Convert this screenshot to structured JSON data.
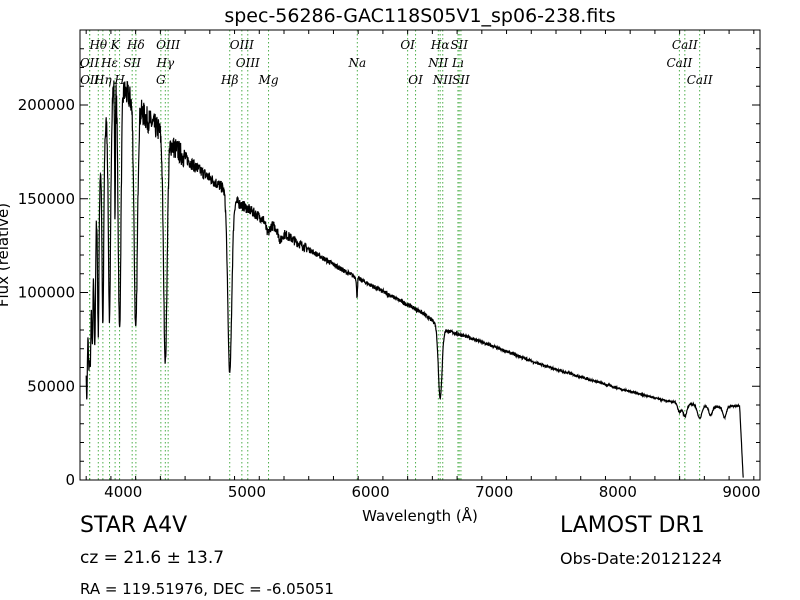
{
  "title": "spec-56286-GAC118S05V1_sp06-238.fits",
  "info": {
    "object_class": "STAR   A4V",
    "survey": "LAMOST DR1",
    "cz": "cz = 21.6  ± 13.7",
    "obs_date": "Obs-Date:20121224",
    "ra_dec": "RA = 119.51976, DEC = -6.05051"
  },
  "colors": {
    "spectrum": "#000000",
    "line_marker": "#4daf4a"
  },
  "chart_data": {
    "type": "line",
    "title": "spec-56286-GAC118S05V1_sp06-238.fits",
    "xlabel": "Wavelength (Å)",
    "ylabel": "Flux (relative)",
    "xlim": [
      3650,
      9150
    ],
    "ylim": [
      0,
      240000
    ],
    "xticks": [
      4000,
      5000,
      6000,
      7000,
      8000,
      9000
    ],
    "yticks": [
      0,
      50000,
      100000,
      150000,
      200000
    ],
    "grid": false,
    "continuum": [
      [
        3700,
        85000
      ],
      [
        3750,
        120000
      ],
      [
        3800,
        160000
      ],
      [
        3850,
        185000
      ],
      [
        3900,
        205000
      ],
      [
        3950,
        212000
      ],
      [
        4000,
        208000
      ],
      [
        4100,
        200000
      ],
      [
        4200,
        192000
      ],
      [
        4300,
        186000
      ],
      [
        4400,
        178000
      ],
      [
        4500,
        172000
      ],
      [
        4600,
        166000
      ],
      [
        4700,
        161000
      ],
      [
        4800,
        156000
      ],
      [
        4900,
        149000
      ],
      [
        5000,
        145000
      ],
      [
        5200,
        136000
      ],
      [
        5400,
        127000
      ],
      [
        5600,
        119000
      ],
      [
        5800,
        111000
      ],
      [
        6000,
        104000
      ],
      [
        6200,
        97000
      ],
      [
        6400,
        90000
      ],
      [
        6600,
        80000
      ],
      [
        6800,
        76000
      ],
      [
        7000,
        71000
      ],
      [
        7200,
        66000
      ],
      [
        7400,
        61000
      ],
      [
        7600,
        57000
      ],
      [
        7800,
        53000
      ],
      [
        8000,
        49000
      ],
      [
        8200,
        45500
      ],
      [
        8400,
        42000
      ],
      [
        8600,
        40500
      ],
      [
        8800,
        39000
      ],
      [
        8960,
        39500
      ]
    ],
    "absorption": [
      [
        3705,
        45000,
        5
      ],
      [
        3722,
        40000,
        5
      ],
      [
        3734,
        44000,
        5
      ],
      [
        3750,
        48000,
        5
      ],
      [
        3770,
        63000,
        6
      ],
      [
        3798,
        80000,
        6
      ],
      [
        3835,
        95000,
        7
      ],
      [
        3889,
        115000,
        9
      ],
      [
        3933,
        70000,
        3
      ],
      [
        3970,
        130000,
        11
      ],
      [
        4101,
        120000,
        13
      ],
      [
        4340,
        120000,
        14
      ],
      [
        4861,
        95000,
        16
      ],
      [
        5169,
        6000,
        14
      ],
      [
        5270,
        5000,
        14
      ],
      [
        5890,
        10000,
        4
      ],
      [
        6563,
        38000,
        15
      ],
      [
        8498,
        5000,
        14
      ],
      [
        8542,
        7000,
        16
      ],
      [
        8662,
        7000,
        18
      ],
      [
        8750,
        5000,
        14
      ],
      [
        8863,
        6000,
        14
      ]
    ],
    "cutoff": [
      8985,
      9015
    ],
    "lines": [
      {
        "label": "Hθ",
        "x": 3798,
        "row": 1
      },
      {
        "label": "K",
        "x": 3934,
        "row": 1
      },
      {
        "label": "Hδ",
        "x": 4102,
        "row": 1
      },
      {
        "label": "OIII",
        "x": 4363,
        "row": 1
      },
      {
        "label": "OIII",
        "x": 4959,
        "row": 1
      },
      {
        "label": "OI",
        "x": 6300,
        "row": 1
      },
      {
        "label": "Hα",
        "x": 6563,
        "row": 1
      },
      {
        "label": "SII",
        "x": 6717,
        "row": 1
      },
      {
        "label": "CaII",
        "x": 8542,
        "row": 1
      },
      {
        "label": "OII",
        "x": 3727,
        "row": 2
      },
      {
        "label": "Hε",
        "x": 3889,
        "row": 2
      },
      {
        "label": "SII",
        "x": 4072,
        "row": 2
      },
      {
        "label": "Hγ",
        "x": 4340,
        "row": 2
      },
      {
        "label": "OIII",
        "x": 5007,
        "row": 2
      },
      {
        "label": "NII",
        "x": 6548,
        "row": 2
      },
      {
        "label": "Na",
        "x": 5893,
        "row": 2
      },
      {
        "label": "Lı",
        "x": 6707,
        "row": 2
      },
      {
        "label": "CaII",
        "x": 8498,
        "row": 2
      },
      {
        "label": "OII",
        "x": 3729,
        "row": 3
      },
      {
        "label": "Hη",
        "x": 3835,
        "row": 3
      },
      {
        "label": "H",
        "x": 3970,
        "row": 3
      },
      {
        "label": "G",
        "x": 4304,
        "row": 3
      },
      {
        "label": "Hβ",
        "x": 4861,
        "row": 3
      },
      {
        "label": "Mg",
        "x": 5175,
        "row": 3
      },
      {
        "label": "OI",
        "x": 6364,
        "row": 3
      },
      {
        "label": "NII",
        "x": 6584,
        "row": 3
      },
      {
        "label": "SII",
        "x": 6731,
        "row": 3
      },
      {
        "label": "CaII",
        "x": 8662,
        "row": 3
      }
    ]
  }
}
